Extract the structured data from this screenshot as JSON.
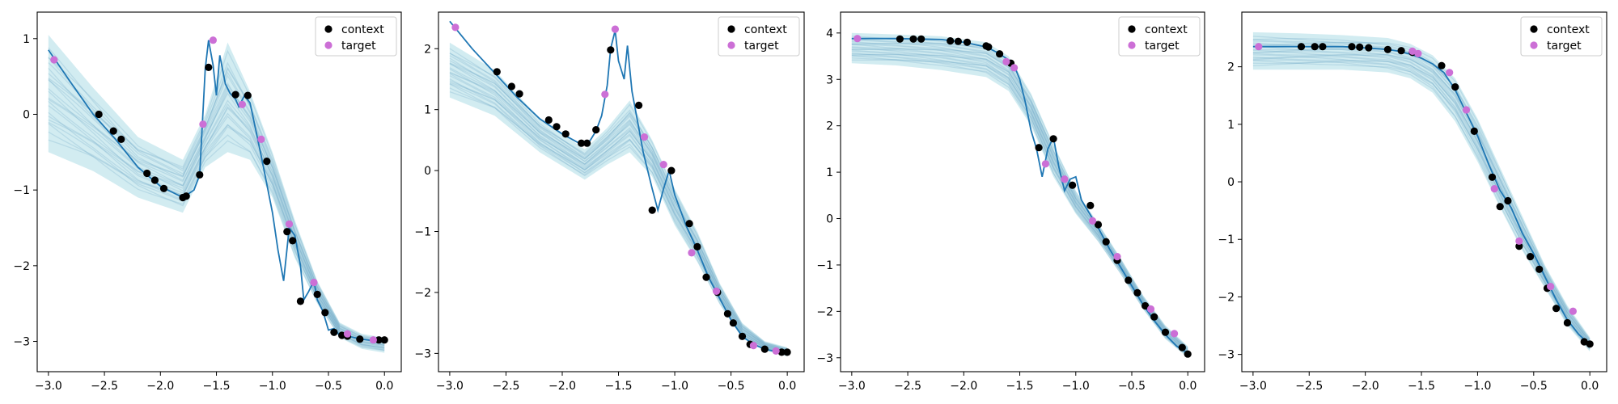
{
  "colors": {
    "context": "#000000",
    "target": "#cc6fd6",
    "truth_line": "#1f77b4",
    "sample_band": "#7ec8d8",
    "sample_line": "#5b9bbd"
  },
  "legend": {
    "context_label": "context",
    "target_label": "target",
    "position": "top-right"
  },
  "chart_data": [
    {
      "type": "line",
      "xlim": [
        -3.1,
        0.15
      ],
      "ylim": [
        -3.4,
        1.35
      ],
      "xticks": [
        -3.0,
        -2.5,
        -2.0,
        -1.5,
        -1.0,
        -0.5,
        0.0
      ],
      "xtick_labels": [
        "−3.0",
        "−2.5",
        "−2.0",
        "−1.5",
        "−1.0",
        "−0.5",
        "0.0"
      ],
      "yticks": [
        -3,
        -2,
        -1,
        0,
        1
      ],
      "ytick_labels": [
        "−3",
        "−2",
        "−1",
        "0",
        "1"
      ],
      "truth": {
        "x": [
          -3.0,
          -2.8,
          -2.6,
          -2.4,
          -2.2,
          -2.0,
          -1.8,
          -1.7,
          -1.65,
          -1.6,
          -1.57,
          -1.53,
          -1.5,
          -1.47,
          -1.42,
          -1.38,
          -1.33,
          -1.3,
          -1.25,
          -1.2,
          -1.15,
          -1.1,
          -1.0,
          -0.95,
          -0.9,
          -0.85,
          -0.8,
          -0.75,
          -0.72,
          -0.68,
          -0.63,
          -0.6,
          -0.55,
          -0.5,
          -0.45,
          -0.4,
          -0.3,
          -0.2,
          -0.1,
          0.0
        ],
        "y": [
          0.85,
          0.42,
          0.0,
          -0.33,
          -0.7,
          -0.95,
          -1.1,
          -1.0,
          -0.8,
          0.6,
          0.98,
          0.65,
          0.25,
          0.78,
          0.4,
          0.28,
          0.2,
          0.1,
          0.25,
          0.15,
          -0.2,
          -0.55,
          -1.3,
          -1.8,
          -2.2,
          -1.5,
          -1.6,
          -2.0,
          -2.45,
          -2.35,
          -2.2,
          -2.45,
          -2.6,
          -2.85,
          -2.83,
          -2.92,
          -2.94,
          -2.97,
          -2.99,
          -2.98
        ]
      },
      "context": [
        [
          -2.55,
          0.0
        ],
        [
          -2.42,
          -0.22
        ],
        [
          -2.35,
          -0.33
        ],
        [
          -2.12,
          -0.78
        ],
        [
          -2.05,
          -0.87
        ],
        [
          -1.97,
          -0.98
        ],
        [
          -1.8,
          -1.1
        ],
        [
          -1.77,
          -1.08
        ],
        [
          -1.65,
          -0.8
        ],
        [
          -1.57,
          0.62
        ],
        [
          -1.33,
          0.26
        ],
        [
          -1.22,
          0.25
        ],
        [
          -1.05,
          -0.62
        ],
        [
          -0.87,
          -1.55
        ],
        [
          -0.82,
          -1.67
        ],
        [
          -0.75,
          -2.47
        ],
        [
          -0.6,
          -2.38
        ],
        [
          -0.53,
          -2.62
        ],
        [
          -0.45,
          -2.88
        ],
        [
          -0.38,
          -2.92
        ],
        [
          -0.33,
          -2.93
        ],
        [
          -0.22,
          -2.97
        ],
        [
          -0.05,
          -2.98
        ],
        [
          0.0,
          -2.98
        ]
      ],
      "target": [
        [
          -2.95,
          0.72
        ],
        [
          -1.62,
          -0.13
        ],
        [
          -1.53,
          0.98
        ],
        [
          -1.27,
          0.13
        ],
        [
          -1.1,
          -0.33
        ],
        [
          -0.85,
          -1.45
        ],
        [
          -0.63,
          -2.22
        ],
        [
          -0.33,
          -2.9
        ],
        [
          -0.1,
          -2.98
        ]
      ],
      "samples": {
        "x": [
          -3.0,
          -2.6,
          -2.2,
          -1.8,
          -1.6,
          -1.4,
          -1.2,
          -1.0,
          -0.8,
          -0.6,
          -0.4,
          -0.2,
          0.0
        ],
        "lower": [
          -0.5,
          -0.75,
          -1.1,
          -1.3,
          -0.7,
          -0.5,
          -0.6,
          -1.1,
          -1.9,
          -2.5,
          -2.95,
          -3.1,
          -3.15
        ],
        "upper": [
          1.05,
          0.35,
          -0.3,
          -0.6,
          0.0,
          0.95,
          0.3,
          -0.5,
          -1.4,
          -2.2,
          -2.75,
          -2.9,
          -2.95
        ],
        "curve_start_min": -0.45,
        "curve_start_max": 1.0
      }
    },
    {
      "type": "line",
      "xlim": [
        -3.1,
        0.15
      ],
      "ylim": [
        -3.3,
        2.6
      ],
      "xticks": [
        -3.0,
        -2.5,
        -2.0,
        -1.5,
        -1.0,
        -0.5,
        0.0
      ],
      "xtick_labels": [
        "−3.0",
        "−2.5",
        "−2.0",
        "−1.5",
        "−1.0",
        "−0.5",
        "0.0"
      ],
      "yticks": [
        -3,
        -2,
        -1,
        0,
        1,
        2
      ],
      "ytick_labels": [
        "−3",
        "−2",
        "−1",
        "0",
        "1",
        "2"
      ],
      "truth": {
        "x": [
          -3.0,
          -2.8,
          -2.6,
          -2.4,
          -2.2,
          -2.0,
          -1.85,
          -1.8,
          -1.75,
          -1.7,
          -1.65,
          -1.6,
          -1.57,
          -1.53,
          -1.5,
          -1.45,
          -1.42,
          -1.38,
          -1.33,
          -1.28,
          -1.2,
          -1.15,
          -1.1,
          -1.05,
          -1.0,
          -0.9,
          -0.8,
          -0.7,
          -0.6,
          -0.5,
          -0.4,
          -0.3,
          -0.2,
          -0.1,
          0.0
        ],
        "y": [
          2.45,
          2.0,
          1.6,
          1.2,
          0.85,
          0.6,
          0.45,
          0.42,
          0.5,
          0.65,
          0.9,
          1.4,
          2.0,
          2.3,
          1.8,
          1.5,
          2.05,
          1.3,
          0.8,
          0.3,
          -0.3,
          -0.65,
          -0.3,
          0.0,
          -0.4,
          -0.9,
          -1.3,
          -1.75,
          -2.1,
          -2.45,
          -2.72,
          -2.85,
          -2.93,
          -2.97,
          -2.99
        ]
      },
      "context": [
        [
          -2.58,
          1.62
        ],
        [
          -2.45,
          1.38
        ],
        [
          -2.38,
          1.26
        ],
        [
          -2.12,
          0.83
        ],
        [
          -2.05,
          0.72
        ],
        [
          -1.97,
          0.6
        ],
        [
          -1.83,
          0.45
        ],
        [
          -1.78,
          0.45
        ],
        [
          -1.7,
          0.67
        ],
        [
          -1.57,
          1.98
        ],
        [
          -1.32,
          1.07
        ],
        [
          -1.2,
          -0.65
        ],
        [
          -1.03,
          0.0
        ],
        [
          -0.87,
          -0.87
        ],
        [
          -0.8,
          -1.25
        ],
        [
          -0.72,
          -1.75
        ],
        [
          -0.62,
          -2.0
        ],
        [
          -0.53,
          -2.35
        ],
        [
          -0.48,
          -2.5
        ],
        [
          -0.4,
          -2.72
        ],
        [
          -0.33,
          -2.85
        ],
        [
          -0.2,
          -2.93
        ],
        [
          -0.05,
          -2.98
        ],
        [
          0.0,
          -2.98
        ]
      ],
      "target": [
        [
          -2.95,
          2.35
        ],
        [
          -1.62,
          1.25
        ],
        [
          -1.53,
          2.32
        ],
        [
          -1.27,
          0.55
        ],
        [
          -1.1,
          0.1
        ],
        [
          -0.85,
          -1.35
        ],
        [
          -0.63,
          -1.98
        ],
        [
          -0.3,
          -2.87
        ],
        [
          -0.1,
          -2.96
        ]
      ],
      "samples": {
        "x": [
          -3.0,
          -2.6,
          -2.2,
          -1.8,
          -1.6,
          -1.4,
          -1.2,
          -1.0,
          -0.8,
          -0.6,
          -0.4,
          -0.2,
          0.0
        ],
        "lower": [
          1.2,
          0.9,
          0.3,
          -0.15,
          0.1,
          0.3,
          -0.1,
          -0.9,
          -1.5,
          -2.2,
          -2.75,
          -2.95,
          -3.05
        ],
        "upper": [
          2.1,
          1.65,
          0.85,
          0.35,
          0.7,
          1.15,
          0.5,
          -0.3,
          -1.0,
          -1.85,
          -2.5,
          -2.8,
          -2.9
        ],
        "curve_start_min": 1.2,
        "curve_start_max": 2.1
      }
    },
    {
      "type": "line",
      "xlim": [
        -3.1,
        0.15
      ],
      "ylim": [
        -3.3,
        4.45
      ],
      "xticks": [
        -3.0,
        -2.5,
        -2.0,
        -1.5,
        -1.0,
        -0.5,
        0.0
      ],
      "xtick_labels": [
        "−3.0",
        "−2.5",
        "−2.0",
        "−1.5",
        "−1.0",
        "−0.5",
        "0.0"
      ],
      "yticks": [
        -3,
        -2,
        -1,
        0,
        1,
        2,
        3,
        4
      ],
      "ytick_labels": [
        "−3",
        "−2",
        "−1",
        "0",
        "1",
        "2",
        "3",
        "4"
      ],
      "truth": {
        "x": [
          -3.0,
          -2.6,
          -2.2,
          -2.0,
          -1.8,
          -1.7,
          -1.6,
          -1.55,
          -1.5,
          -1.45,
          -1.4,
          -1.35,
          -1.3,
          -1.25,
          -1.2,
          -1.15,
          -1.1,
          -1.05,
          -1.0,
          -0.95,
          -0.9,
          -0.8,
          -0.7,
          -0.6,
          -0.5,
          -0.4,
          -0.3,
          -0.2,
          -0.1,
          0.0
        ],
        "y": [
          3.88,
          3.88,
          3.86,
          3.8,
          3.7,
          3.58,
          3.42,
          3.3,
          3.0,
          2.5,
          1.9,
          1.5,
          0.9,
          1.5,
          1.75,
          1.1,
          0.6,
          0.85,
          0.9,
          0.4,
          0.2,
          -0.2,
          -0.65,
          -1.05,
          -1.45,
          -1.85,
          -2.2,
          -2.5,
          -2.75,
          -2.9
        ]
      },
      "context": [
        [
          -2.57,
          3.87
        ],
        [
          -2.45,
          3.87
        ],
        [
          -2.38,
          3.87
        ],
        [
          -2.12,
          3.83
        ],
        [
          -2.05,
          3.82
        ],
        [
          -1.97,
          3.8
        ],
        [
          -1.8,
          3.72
        ],
        [
          -1.78,
          3.7
        ],
        [
          -1.68,
          3.55
        ],
        [
          -1.58,
          3.35
        ],
        [
          -1.33,
          1.53
        ],
        [
          -1.2,
          1.72
        ],
        [
          -1.03,
          0.72
        ],
        [
          -0.87,
          0.28
        ],
        [
          -0.8,
          -0.13
        ],
        [
          -0.73,
          -0.5
        ],
        [
          -0.63,
          -0.9
        ],
        [
          -0.53,
          -1.33
        ],
        [
          -0.45,
          -1.6
        ],
        [
          -0.38,
          -1.88
        ],
        [
          -0.3,
          -2.12
        ],
        [
          -0.2,
          -2.45
        ],
        [
          -0.05,
          -2.78
        ],
        [
          0.0,
          -2.92
        ]
      ],
      "target": [
        [
          -2.95,
          3.88
        ],
        [
          -1.62,
          3.38
        ],
        [
          -1.55,
          3.25
        ],
        [
          -1.27,
          1.18
        ],
        [
          -1.1,
          0.85
        ],
        [
          -0.85,
          -0.05
        ],
        [
          -0.63,
          -0.82
        ],
        [
          -0.33,
          -1.95
        ],
        [
          -0.12,
          -2.48
        ]
      ],
      "samples": {
        "x": [
          -3.0,
          -2.6,
          -2.2,
          -1.8,
          -1.6,
          -1.4,
          -1.2,
          -1.0,
          -0.8,
          -0.6,
          -0.4,
          -0.2,
          0.0
        ],
        "lower": [
          3.35,
          3.3,
          3.2,
          3.05,
          2.75,
          2.0,
          0.9,
          0.1,
          -0.5,
          -1.2,
          -1.95,
          -2.6,
          -3.0
        ],
        "upper": [
          4.0,
          3.97,
          3.93,
          3.8,
          3.5,
          2.7,
          1.6,
          0.6,
          -0.1,
          -0.85,
          -1.65,
          -2.3,
          -2.75
        ],
        "curve_start_min": 3.4,
        "curve_start_max": 4.0
      }
    },
    {
      "type": "line",
      "xlim": [
        -3.1,
        0.15
      ],
      "ylim": [
        -3.3,
        2.95
      ],
      "xticks": [
        -3.0,
        -2.5,
        -2.0,
        -1.5,
        -1.0,
        -0.5,
        0.0
      ],
      "xtick_labels": [
        "−3.0",
        "−2.5",
        "−2.0",
        "−1.5",
        "−1.0",
        "−0.5",
        "0.0"
      ],
      "yticks": [
        -3,
        -2,
        -1,
        0,
        1,
        2
      ],
      "ytick_labels": [
        "−3",
        "−2",
        "−1",
        "0",
        "1",
        "2"
      ],
      "truth": {
        "x": [
          -3.0,
          -2.6,
          -2.2,
          -2.0,
          -1.8,
          -1.7,
          -1.6,
          -1.5,
          -1.4,
          -1.3,
          -1.2,
          -1.1,
          -1.0,
          -0.9,
          -0.8,
          -0.7,
          -0.6,
          -0.5,
          -0.4,
          -0.3,
          -0.2,
          -0.1,
          0.0
        ],
        "y": [
          2.35,
          2.35,
          2.35,
          2.33,
          2.3,
          2.27,
          2.22,
          2.15,
          2.05,
          1.9,
          1.6,
          1.2,
          0.8,
          0.3,
          -0.15,
          -0.45,
          -0.9,
          -1.25,
          -1.65,
          -2.05,
          -2.4,
          -2.65,
          -2.83
        ]
      },
      "context": [
        [
          -2.57,
          2.35
        ],
        [
          -2.45,
          2.35
        ],
        [
          -2.38,
          2.35
        ],
        [
          -2.12,
          2.35
        ],
        [
          -2.05,
          2.34
        ],
        [
          -1.97,
          2.33
        ],
        [
          -1.8,
          2.3
        ],
        [
          -1.68,
          2.28
        ],
        [
          -1.58,
          2.25
        ],
        [
          -1.32,
          2.02
        ],
        [
          -1.2,
          1.65
        ],
        [
          -1.03,
          0.88
        ],
        [
          -0.87,
          0.08
        ],
        [
          -0.8,
          -0.43
        ],
        [
          -0.73,
          -0.33
        ],
        [
          -0.63,
          -1.12
        ],
        [
          -0.53,
          -1.3
        ],
        [
          -0.45,
          -1.52
        ],
        [
          -0.38,
          -1.85
        ],
        [
          -0.3,
          -2.2
        ],
        [
          -0.2,
          -2.45
        ],
        [
          -0.05,
          -2.78
        ],
        [
          0.0,
          -2.82
        ]
      ],
      "target": [
        [
          -2.95,
          2.35
        ],
        [
          -1.58,
          2.27
        ],
        [
          -1.53,
          2.23
        ],
        [
          -1.25,
          1.9
        ],
        [
          -1.1,
          1.25
        ],
        [
          -0.85,
          -0.12
        ],
        [
          -0.63,
          -1.03
        ],
        [
          -0.35,
          -1.82
        ],
        [
          -0.15,
          -2.25
        ]
      ],
      "samples": {
        "x": [
          -3.0,
          -2.6,
          -2.2,
          -1.8,
          -1.6,
          -1.4,
          -1.2,
          -1.0,
          -0.8,
          -0.6,
          -0.4,
          -0.2,
          0.0
        ],
        "lower": [
          1.95,
          1.95,
          1.95,
          1.9,
          1.8,
          1.55,
          1.05,
          0.35,
          -0.45,
          -1.2,
          -1.85,
          -2.5,
          -2.95
        ],
        "upper": [
          2.6,
          2.58,
          2.55,
          2.5,
          2.4,
          2.2,
          1.8,
          1.1,
          0.25,
          -0.6,
          -1.45,
          -2.15,
          -2.7
        ],
        "curve_start_min": 1.95,
        "curve_start_max": 2.6
      }
    }
  ]
}
